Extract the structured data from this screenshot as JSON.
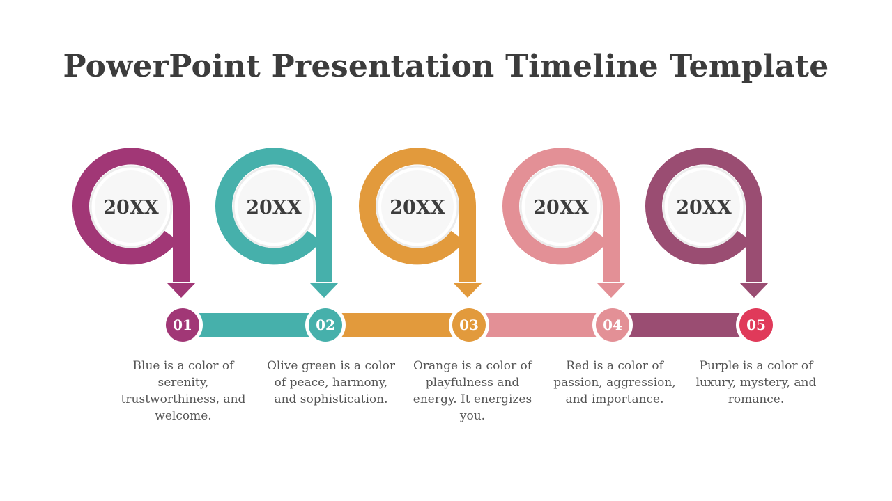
{
  "title": "PowerPoint Presentation Timeline Template",
  "steps": [
    {
      "year": "20XX",
      "number": "01",
      "color": "#a13776",
      "description": "Blue is a color of serenity, trustworthiness, and welcome."
    },
    {
      "year": "20XX",
      "number": "02",
      "color": "#46b0ab",
      "description": "Olive green is a color of peace, harmony, and sophistication."
    },
    {
      "year": "20XX",
      "number": "03",
      "color": "#e29a3c",
      "description": "Orange is a color of playfulness and energy. It energizes you."
    },
    {
      "year": "20XX",
      "number": "04",
      "color": "#e39096",
      "description": "Red is a color of passion, aggression, and importance."
    },
    {
      "year": "20XX",
      "number": "05",
      "color": "#9a4d72",
      "description": "Purple is a color of luxury, mystery, and romance."
    }
  ],
  "final_marker_color": "#e03a5a"
}
